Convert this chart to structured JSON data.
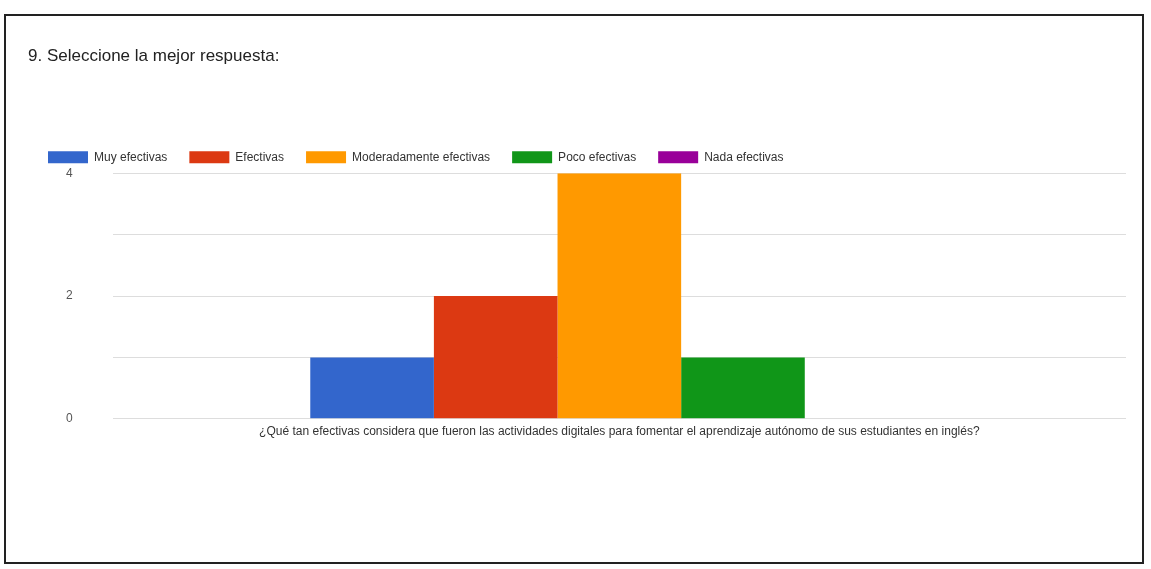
{
  "chart_data": {
    "type": "bar",
    "title": "9. Seleccione la mejor respuesta:",
    "categories": [
      "¿Qué tan efectivas considera que fueron las actividades digitales para fomentar el aprendizaje autónomo de sus estudiantes en inglés?"
    ],
    "series": [
      {
        "name": "Muy efectivas",
        "color": "#3366cc",
        "values": [
          1
        ]
      },
      {
        "name": "Efectivas",
        "color": "#dc3912",
        "values": [
          2
        ]
      },
      {
        "name": "Moderadamente efectivas",
        "color": "#ff9900",
        "values": [
          4
        ]
      },
      {
        "name": "Poco efectivas",
        "color": "#109618",
        "values": [
          1
        ]
      },
      {
        "name": "Nada efectivas",
        "color": "#990099",
        "values": [
          0
        ]
      }
    ],
    "ylim": [
      0,
      4
    ],
    "yticks": [
      0,
      {
        "value": 1,
        "label": null
      },
      2,
      {
        "value": 3,
        "label": null
      },
      4
    ],
    "grid": "y",
    "legend": "top"
  }
}
